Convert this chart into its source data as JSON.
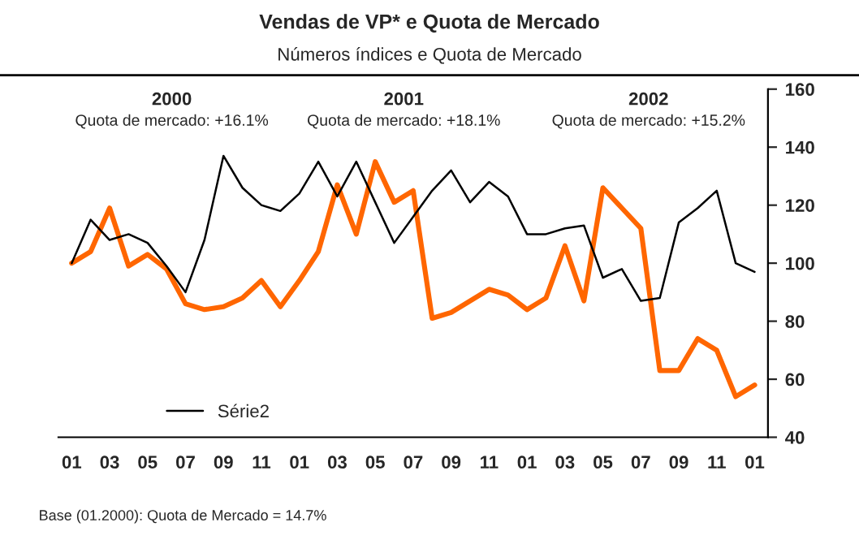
{
  "chart_data": {
    "type": "line",
    "title": "Vendas de VP* e Quota de Mercado",
    "subtitle": "Números índices e Quota de Mercado",
    "categories": [
      "01",
      null,
      "03",
      null,
      "05",
      null,
      "07",
      null,
      "09",
      null,
      "11",
      null,
      "01",
      null,
      "03",
      null,
      "05",
      null,
      "07",
      null,
      "09",
      null,
      "11",
      null,
      "01",
      null,
      "03",
      null,
      "05",
      null,
      "07",
      null,
      "09",
      null,
      "11",
      null,
      "01"
    ],
    "series": [
      {
        "color": "#ff6600",
        "values": [
          100,
          104,
          119,
          99,
          103,
          98,
          86,
          84,
          85,
          88,
          94,
          85,
          94,
          104,
          127,
          110,
          135,
          121,
          125,
          81,
          83,
          87,
          91,
          89,
          84,
          88,
          106,
          87,
          126,
          119,
          112,
          63,
          63,
          74,
          70,
          54,
          58
        ]
      },
      {
        "name": "Série2",
        "color": "#000000",
        "values": [
          100,
          115,
          108,
          110,
          107,
          99,
          90,
          108,
          137,
          126,
          120,
          118,
          124,
          135,
          123,
          135,
          121,
          107,
          116,
          125,
          132,
          121,
          128,
          123,
          110,
          110,
          112,
          113,
          95,
          98,
          87,
          88,
          114,
          119,
          125,
          100,
          97
        ]
      }
    ],
    "ylim": [
      40,
      160
    ],
    "yticks": [
      40,
      60,
      80,
      100,
      120,
      140,
      160
    ],
    "grid": false,
    "legend": "bottom left",
    "annotations": [
      "2000",
      "Quota de mercado: +16.1%",
      "2001",
      "Quota de mercado: +18.1%",
      "2002",
      "Quota de mercado: +15.2%",
      "Base (01.2000): Quota de Mercado = 14.7%"
    ]
  }
}
